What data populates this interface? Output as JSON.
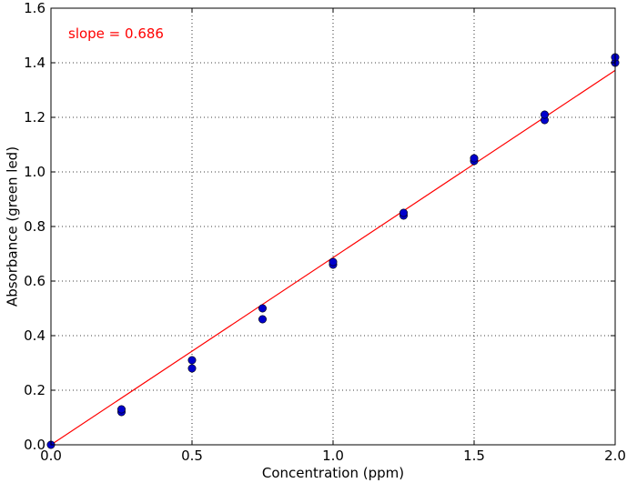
{
  "chart_data": {
    "type": "scatter",
    "title": "",
    "xlabel": "Concentration (ppm)",
    "ylabel": "Absorbance (green led)",
    "xlim": [
      0.0,
      2.0
    ],
    "ylim": [
      0.0,
      1.6
    ],
    "xticks": [
      0.0,
      0.5,
      1.0,
      1.5,
      2.0
    ],
    "yticks": [
      0.0,
      0.2,
      0.4,
      0.6,
      0.8,
      1.0,
      1.2,
      1.4,
      1.6
    ],
    "xtick_labels": [
      "0.0",
      "0.5",
      "1.0",
      "1.5",
      "2.0"
    ],
    "ytick_labels": [
      "0.0",
      "0.2",
      "0.4",
      "0.6",
      "0.8",
      "1.0",
      "1.2",
      "1.4",
      "1.6"
    ],
    "grid": true,
    "series": [
      {
        "name": "measurements",
        "marker_color": "#0000cc",
        "points": [
          {
            "x": 0.0,
            "y": 0.0
          },
          {
            "x": 0.25,
            "y": 0.12
          },
          {
            "x": 0.25,
            "y": 0.13
          },
          {
            "x": 0.5,
            "y": 0.28
          },
          {
            "x": 0.5,
            "y": 0.31
          },
          {
            "x": 0.75,
            "y": 0.46
          },
          {
            "x": 0.75,
            "y": 0.5
          },
          {
            "x": 1.0,
            "y": 0.66
          },
          {
            "x": 1.0,
            "y": 0.67
          },
          {
            "x": 1.25,
            "y": 0.84
          },
          {
            "x": 1.25,
            "y": 0.85
          },
          {
            "x": 1.5,
            "y": 1.04
          },
          {
            "x": 1.5,
            "y": 1.05
          },
          {
            "x": 1.75,
            "y": 1.19
          },
          {
            "x": 1.75,
            "y": 1.21
          },
          {
            "x": 2.0,
            "y": 1.4
          },
          {
            "x": 2.0,
            "y": 1.42
          }
        ]
      }
    ],
    "fit_line": {
      "name": "linear fit",
      "color": "#ff0000",
      "slope": 0.686,
      "intercept": 0.0,
      "x_range": [
        0.0,
        2.0
      ]
    },
    "annotation": {
      "text": "slope = 0.686",
      "color": "#ff0000",
      "placement": "top-left"
    }
  }
}
